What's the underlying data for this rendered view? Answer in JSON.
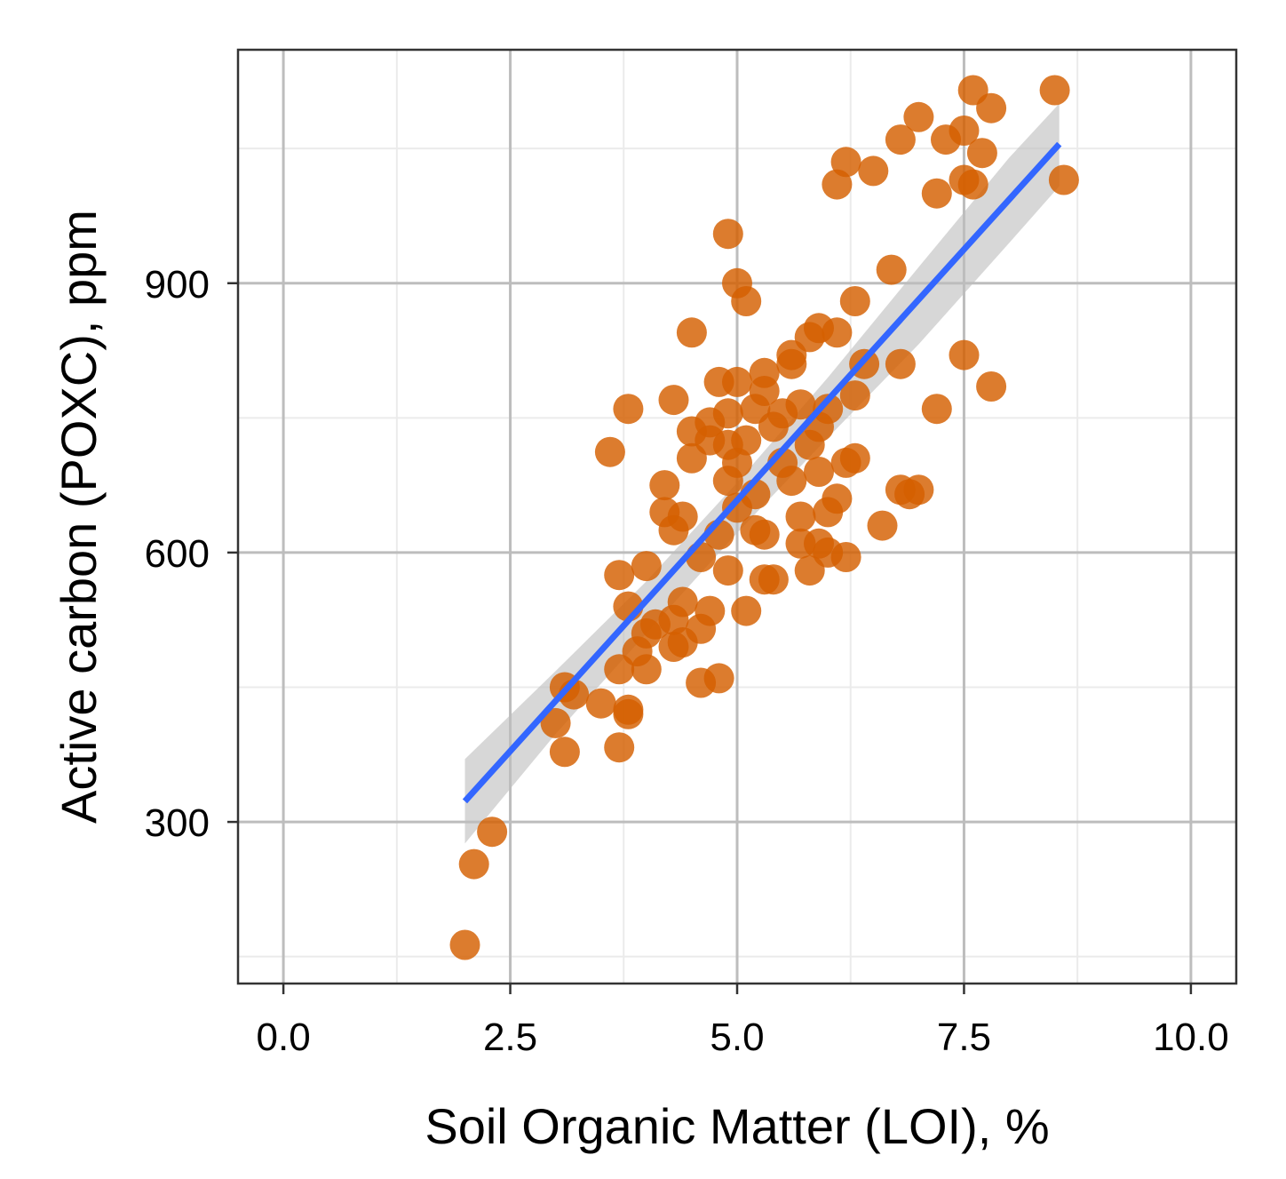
{
  "chart_data": {
    "type": "scatter",
    "title": "",
    "xlabel": "Soil Organic Matter (LOI), %",
    "ylabel": "Active carbon (POXC), ppm",
    "xlim": [
      -0.5,
      10.5
    ],
    "ylim": [
      120,
      1160
    ],
    "x_ticks": [
      0.0,
      2.5,
      5.0,
      7.5,
      10.0
    ],
    "x_tick_labels": [
      "0.0",
      "2.5",
      "5.0",
      "7.5",
      "10.0"
    ],
    "y_ticks": [
      300,
      600,
      900
    ],
    "y_tick_labels": [
      "300",
      "600",
      "900"
    ],
    "x_minor_ticks": [
      1.25,
      3.75,
      6.25,
      8.75
    ],
    "y_minor_ticks": [
      150,
      450,
      750,
      1050
    ],
    "grid": true,
    "legend": "none",
    "colors": {
      "points": "#d45f00",
      "fit_line": "#3366ff",
      "confidence_band": "#bdbdbd",
      "grid_major": "#bdbdbd",
      "grid_minor": "#ebebeb",
      "panel_border": "#333333"
    },
    "series": [
      {
        "name": "samples",
        "kind": "points",
        "points": [
          [
            2.0,
            163
          ],
          [
            2.1,
            253
          ],
          [
            2.3,
            289
          ],
          [
            3.0,
            410
          ],
          [
            3.1,
            378
          ],
          [
            3.1,
            450
          ],
          [
            3.2,
            442
          ],
          [
            3.5,
            432
          ],
          [
            3.6,
            712
          ],
          [
            3.7,
            575
          ],
          [
            3.7,
            383
          ],
          [
            3.7,
            470
          ],
          [
            3.8,
            420
          ],
          [
            3.8,
            425
          ],
          [
            3.8,
            540
          ],
          [
            3.8,
            760
          ],
          [
            3.9,
            490
          ],
          [
            4.0,
            470
          ],
          [
            4.0,
            510
          ],
          [
            4.0,
            585
          ],
          [
            4.1,
            520
          ],
          [
            4.2,
            645
          ],
          [
            4.2,
            675
          ],
          [
            4.3,
            495
          ],
          [
            4.3,
            525
          ],
          [
            4.3,
            625
          ],
          [
            4.3,
            770
          ],
          [
            4.4,
            545
          ],
          [
            4.4,
            640
          ],
          [
            4.4,
            500
          ],
          [
            4.5,
            705
          ],
          [
            4.5,
            735
          ],
          [
            4.5,
            845
          ],
          [
            4.6,
            515
          ],
          [
            4.6,
            595
          ],
          [
            4.6,
            455
          ],
          [
            4.7,
            725
          ],
          [
            4.7,
            745
          ],
          [
            4.7,
            535
          ],
          [
            4.8,
            790
          ],
          [
            4.8,
            620
          ],
          [
            4.8,
            460
          ],
          [
            4.9,
            680
          ],
          [
            4.9,
            720
          ],
          [
            4.9,
            755
          ],
          [
            4.9,
            580
          ],
          [
            4.9,
            955
          ],
          [
            5.0,
            900
          ],
          [
            5.0,
            790
          ],
          [
            5.0,
            650
          ],
          [
            5.0,
            700
          ],
          [
            5.1,
            725
          ],
          [
            5.1,
            880
          ],
          [
            5.1,
            535
          ],
          [
            5.2,
            625
          ],
          [
            5.2,
            665
          ],
          [
            5.2,
            760
          ],
          [
            5.3,
            570
          ],
          [
            5.3,
            620
          ],
          [
            5.3,
            800
          ],
          [
            5.3,
            780
          ],
          [
            5.4,
            570
          ],
          [
            5.4,
            740
          ],
          [
            5.5,
            700
          ],
          [
            5.5,
            755
          ],
          [
            5.6,
            680
          ],
          [
            5.6,
            810
          ],
          [
            5.6,
            820
          ],
          [
            5.7,
            765
          ],
          [
            5.7,
            640
          ],
          [
            5.7,
            610
          ],
          [
            5.8,
            580
          ],
          [
            5.8,
            720
          ],
          [
            5.8,
            840
          ],
          [
            5.9,
            690
          ],
          [
            5.9,
            740
          ],
          [
            5.9,
            610
          ],
          [
            5.9,
            850
          ],
          [
            6.0,
            600
          ],
          [
            6.0,
            645
          ],
          [
            6.0,
            760
          ],
          [
            6.1,
            660
          ],
          [
            6.1,
            845
          ],
          [
            6.1,
            1010
          ],
          [
            6.2,
            700
          ],
          [
            6.2,
            595
          ],
          [
            6.2,
            1035
          ],
          [
            6.3,
            705
          ],
          [
            6.3,
            880
          ],
          [
            6.3,
            775
          ],
          [
            6.4,
            810
          ],
          [
            6.5,
            1025
          ],
          [
            6.6,
            630
          ],
          [
            6.7,
            915
          ],
          [
            6.8,
            1060
          ],
          [
            6.8,
            810
          ],
          [
            6.8,
            670
          ],
          [
            6.9,
            665
          ],
          [
            7.0,
            670
          ],
          [
            7.0,
            1085
          ],
          [
            7.2,
            1000
          ],
          [
            7.2,
            760
          ],
          [
            7.3,
            1060
          ],
          [
            7.5,
            1070
          ],
          [
            7.5,
            1015
          ],
          [
            7.5,
            820
          ],
          [
            7.6,
            1010
          ],
          [
            7.6,
            1115
          ],
          [
            7.7,
            1045
          ],
          [
            7.8,
            1095
          ],
          [
            7.8,
            785
          ],
          [
            8.5,
            1115
          ],
          [
            8.6,
            1015
          ]
        ]
      },
      {
        "name": "linear fit",
        "kind": "line",
        "x": [
          2.0,
          8.55
        ],
        "y": [
          323,
          1055
        ]
      },
      {
        "name": "95% confidence band",
        "kind": "band",
        "x": [
          2.0,
          3.0,
          4.0,
          5.0,
          6.0,
          7.0,
          8.0,
          8.55
        ],
        "upper": [
          370,
          468,
          568,
          678,
          795,
          918,
          1040,
          1100
        ],
        "lower": [
          276,
          398,
          510,
          622,
          728,
          832,
          945,
          1008
        ]
      }
    ]
  }
}
